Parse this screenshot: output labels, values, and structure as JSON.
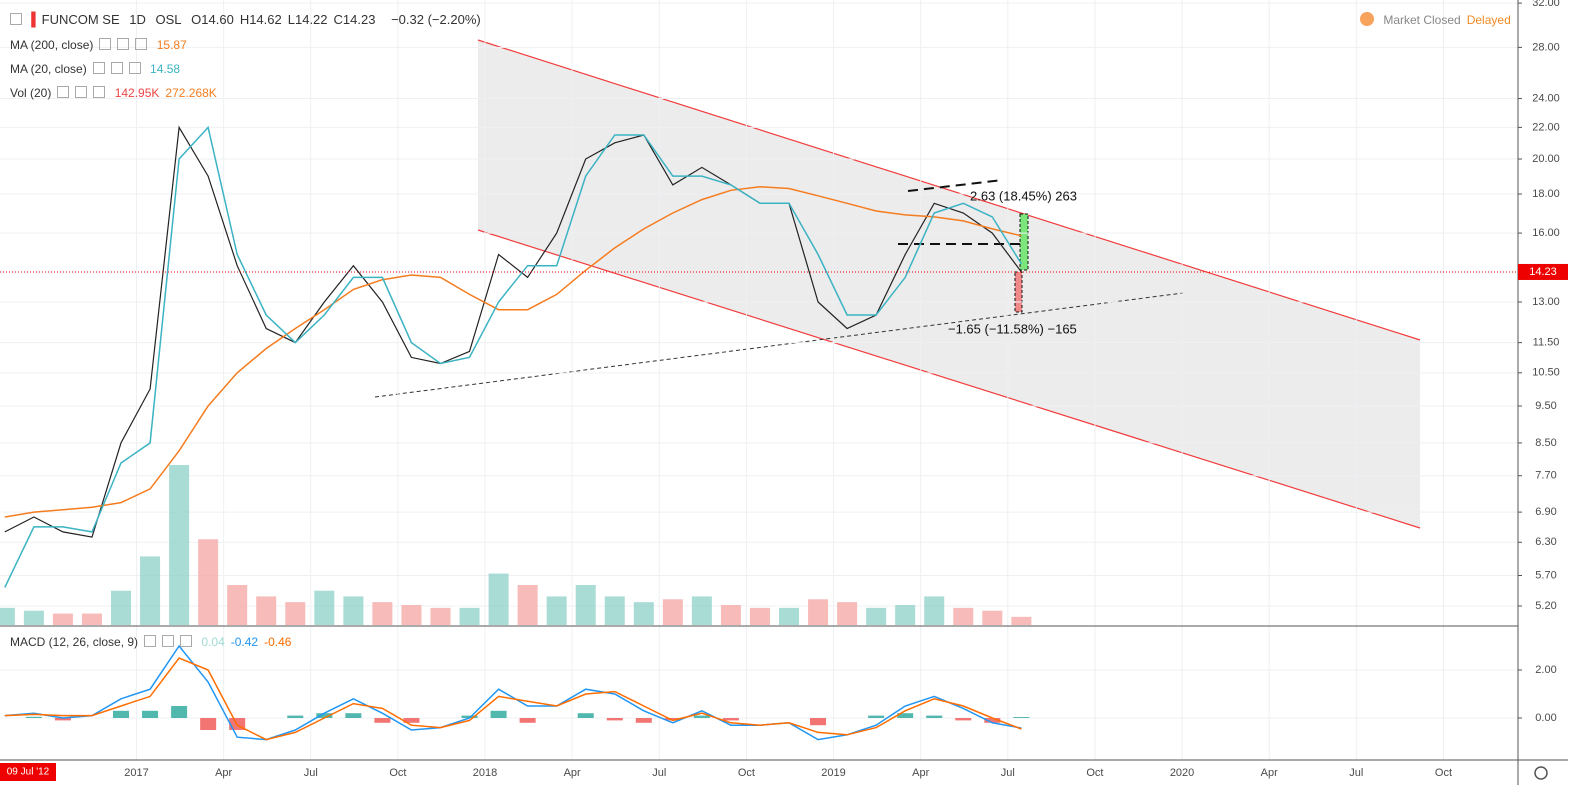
{
  "header": {
    "interval": "1D",
    "exchange": "OSL",
    "ohlc": [
      {
        "key": "O",
        "value": "14.60"
      },
      {
        "key": "H",
        "value": "14.62"
      },
      {
        "key": "L",
        "value": "14.22"
      },
      {
        "key": "C",
        "value": "14.23"
      }
    ],
    "change": "−0.32 (−2.20%)"
  },
  "status": {
    "market": "Market Closed",
    "feed": "Delayed"
  },
  "cursor_date": "09 Jul '12",
  "chart_data": [
    {
      "type": "line",
      "log_scale": true,
      "grid": true,
      "x": [
        "2016-08",
        "2016-09",
        "2016-10",
        "2016-11",
        "2016-12",
        "2017-01",
        "2017-02",
        "2017-03",
        "2017-04",
        "2017-05",
        "2017-06",
        "2017-07",
        "2017-08",
        "2017-09",
        "2017-10",
        "2017-11",
        "2017-12",
        "2018-01",
        "2018-02",
        "2018-03",
        "2018-04",
        "2018-05",
        "2018-06",
        "2018-07",
        "2018-08",
        "2018-09",
        "2018-10",
        "2018-11",
        "2018-12",
        "2019-01",
        "2019-02",
        "2019-03",
        "2019-04",
        "2019-05",
        "2019-06",
        "2019-07"
      ],
      "series": [
        {
          "name": "FUNCOM SE",
          "color": "#222222",
          "values": [
            6.5,
            6.8,
            6.5,
            6.4,
            8.5,
            10,
            22,
            19,
            14.5,
            12,
            11.5,
            13,
            14.5,
            13,
            11,
            10.8,
            11.2,
            15,
            14,
            16,
            20,
            21,
            21.5,
            18.5,
            19.5,
            18.5,
            17.5,
            17.5,
            13,
            12,
            12.5,
            15,
            17.5,
            17,
            16,
            14.23
          ]
        },
        {
          "name": "MA (200, close)",
          "color": "#f57c1f",
          "values": [
            6.8,
            6.9,
            6.95,
            7.0,
            7.1,
            7.4,
            8.3,
            9.5,
            10.5,
            11.3,
            12,
            12.7,
            13.5,
            13.9,
            14.1,
            14.0,
            13.3,
            12.7,
            12.7,
            13.3,
            14.3,
            15.3,
            16.2,
            17.0,
            17.7,
            18.2,
            18.4,
            18.3,
            17.9,
            17.5,
            17.1,
            16.9,
            16.8,
            16.6,
            16.2,
            15.87
          ]
        },
        {
          "name": "MA (20, close)",
          "color": "#3bb3c3",
          "values": [
            5.5,
            6.6,
            6.6,
            6.5,
            8.0,
            8.5,
            20,
            22,
            15,
            12.5,
            11.5,
            12.5,
            14,
            14,
            11.5,
            10.8,
            11,
            13,
            14.5,
            14.5,
            19,
            21.5,
            21.5,
            19,
            19,
            18.5,
            17.5,
            17.5,
            15,
            12.5,
            12.5,
            14,
            17,
            17.5,
            16.8,
            14.58
          ]
        }
      ],
      "volume": {
        "name": "Vol (20)",
        "color_up": "#93d3cb",
        "color_down": "#f5aaa8",
        "last_label": "142.95K",
        "ma_label": "272.268K",
        "values": [
          300,
          250,
          200,
          200,
          600,
          1200,
          2800,
          1500,
          700,
          500,
          400,
          600,
          500,
          400,
          350,
          300,
          300,
          900,
          700,
          500,
          700,
          500,
          400,
          450,
          500,
          350,
          300,
          300,
          450,
          400,
          300,
          350,
          500,
          300,
          250,
          142.95
        ]
      },
      "xlim": [
        "2016-08-10",
        "2020-12-18"
      ],
      "xticks": [
        {
          "value": "2017-01-01",
          "label": "2017"
        },
        {
          "value": "2017-04-01",
          "label": "Apr"
        },
        {
          "value": "2017-07-01",
          "label": "Jul"
        },
        {
          "value": "2017-10-01",
          "label": "Oct"
        },
        {
          "value": "2018-01-01",
          "label": "2018"
        },
        {
          "value": "2018-04-01",
          "label": "Apr"
        },
        {
          "value": "2018-07-01",
          "label": "Jul"
        },
        {
          "value": "2018-10-01",
          "label": "Oct"
        },
        {
          "value": "2019-01-01",
          "label": "2019"
        },
        {
          "value": "2019-04-01",
          "label": "Apr"
        },
        {
          "value": "2019-07-01",
          "label": "Jul"
        },
        {
          "value": "2019-10-01",
          "label": "Oct"
        },
        {
          "value": "2020-01-01",
          "label": "2020"
        },
        {
          "value": "2020-04-01",
          "label": "Apr"
        },
        {
          "value": "2020-07-01",
          "label": "Jul"
        },
        {
          "value": "2020-10-01",
          "label": "Oct"
        }
      ],
      "ylim": [
        4.91,
        32.3
      ],
      "yticks": [
        {
          "value": 32,
          "label": "32.00"
        },
        {
          "value": 28,
          "label": "28.00"
        },
        {
          "value": 24,
          "label": "24.00"
        },
        {
          "value": 22,
          "label": "22.00"
        },
        {
          "value": 20,
          "label": "20.00"
        },
        {
          "value": 18,
          "label": "18.00"
        },
        {
          "value": 16,
          "label": "16.00"
        },
        {
          "value": 13,
          "label": "13.00"
        },
        {
          "value": 11.5,
          "label": "11.50"
        },
        {
          "value": 10.5,
          "label": "10.50"
        },
        {
          "value": 9.5,
          "label": "9.50"
        },
        {
          "value": 8.5,
          "label": "8.50"
        },
        {
          "value": 7.7,
          "label": "7.70"
        },
        {
          "value": 6.9,
          "label": "6.90"
        },
        {
          "value": 6.3,
          "label": "6.30"
        },
        {
          "value": 5.7,
          "label": "5.70"
        },
        {
          "value": 5.2,
          "label": "5.20"
        }
      ],
      "annotations": [
        "2.63 (18.45%) 263",
        "−1.65 (−11.58%) −165"
      ]
    },
    {
      "type": "line",
      "title": "MACD (12, 26, close, 9)",
      "grid": true,
      "x": [
        "2016-08",
        "2016-09",
        "2016-10",
        "2016-11",
        "2016-12",
        "2017-01",
        "2017-02",
        "2017-03",
        "2017-04",
        "2017-05",
        "2017-06",
        "2017-07",
        "2017-08",
        "2017-09",
        "2017-10",
        "2017-11",
        "2017-12",
        "2018-01",
        "2018-02",
        "2018-03",
        "2018-04",
        "2018-05",
        "2018-06",
        "2018-07",
        "2018-08",
        "2018-09",
        "2018-10",
        "2018-11",
        "2018-12",
        "2019-01",
        "2019-02",
        "2019-03",
        "2019-04",
        "2019-05",
        "2019-06",
        "2019-07"
      ],
      "histogram": {
        "color_up": "#26a69a",
        "color_down": "#ef5350",
        "values": [
          0,
          0.05,
          -0.1,
          0,
          0.3,
          0.3,
          0.5,
          -0.5,
          -0.5,
          0,
          0.1,
          0.2,
          0.2,
          -0.2,
          -0.2,
          0,
          0.1,
          0.3,
          -0.2,
          0,
          0.2,
          -0.1,
          -0.2,
          -0.1,
          0.1,
          -0.1,
          0,
          0,
          -0.3,
          0,
          0.1,
          0.2,
          0.1,
          -0.1,
          -0.2,
          0.04
        ]
      },
      "series": [
        {
          "color": "#2196f3",
          "values": [
            0.1,
            0.2,
            0,
            0.1,
            0.8,
            1.2,
            3.0,
            1.5,
            -0.8,
            -0.9,
            -0.5,
            0.2,
            0.8,
            0.2,
            -0.5,
            -0.4,
            0,
            1.2,
            0.5,
            0.5,
            1.2,
            1.0,
            0.3,
            -0.2,
            0.3,
            -0.3,
            -0.3,
            -0.2,
            -0.9,
            -0.7,
            -0.3,
            0.5,
            0.9,
            0.4,
            -0.2,
            -0.42
          ]
        },
        {
          "color": "#ff6d00",
          "values": [
            0.1,
            0.15,
            0.1,
            0.1,
            0.5,
            0.9,
            2.5,
            2.0,
            -0.3,
            -0.9,
            -0.6,
            0,
            0.6,
            0.4,
            -0.3,
            -0.4,
            -0.1,
            0.9,
            0.7,
            0.5,
            1.0,
            1.1,
            0.5,
            -0.1,
            0.2,
            -0.2,
            -0.3,
            -0.2,
            -0.6,
            -0.7,
            -0.4,
            0.3,
            0.8,
            0.5,
            0,
            -0.46
          ]
        }
      ],
      "ylim": [
        -1.75,
        3.75
      ],
      "yticks": [
        {
          "value": 2,
          "label": "2.00"
        },
        {
          "value": 0,
          "label": "0.00"
        }
      ]
    }
  ]
}
